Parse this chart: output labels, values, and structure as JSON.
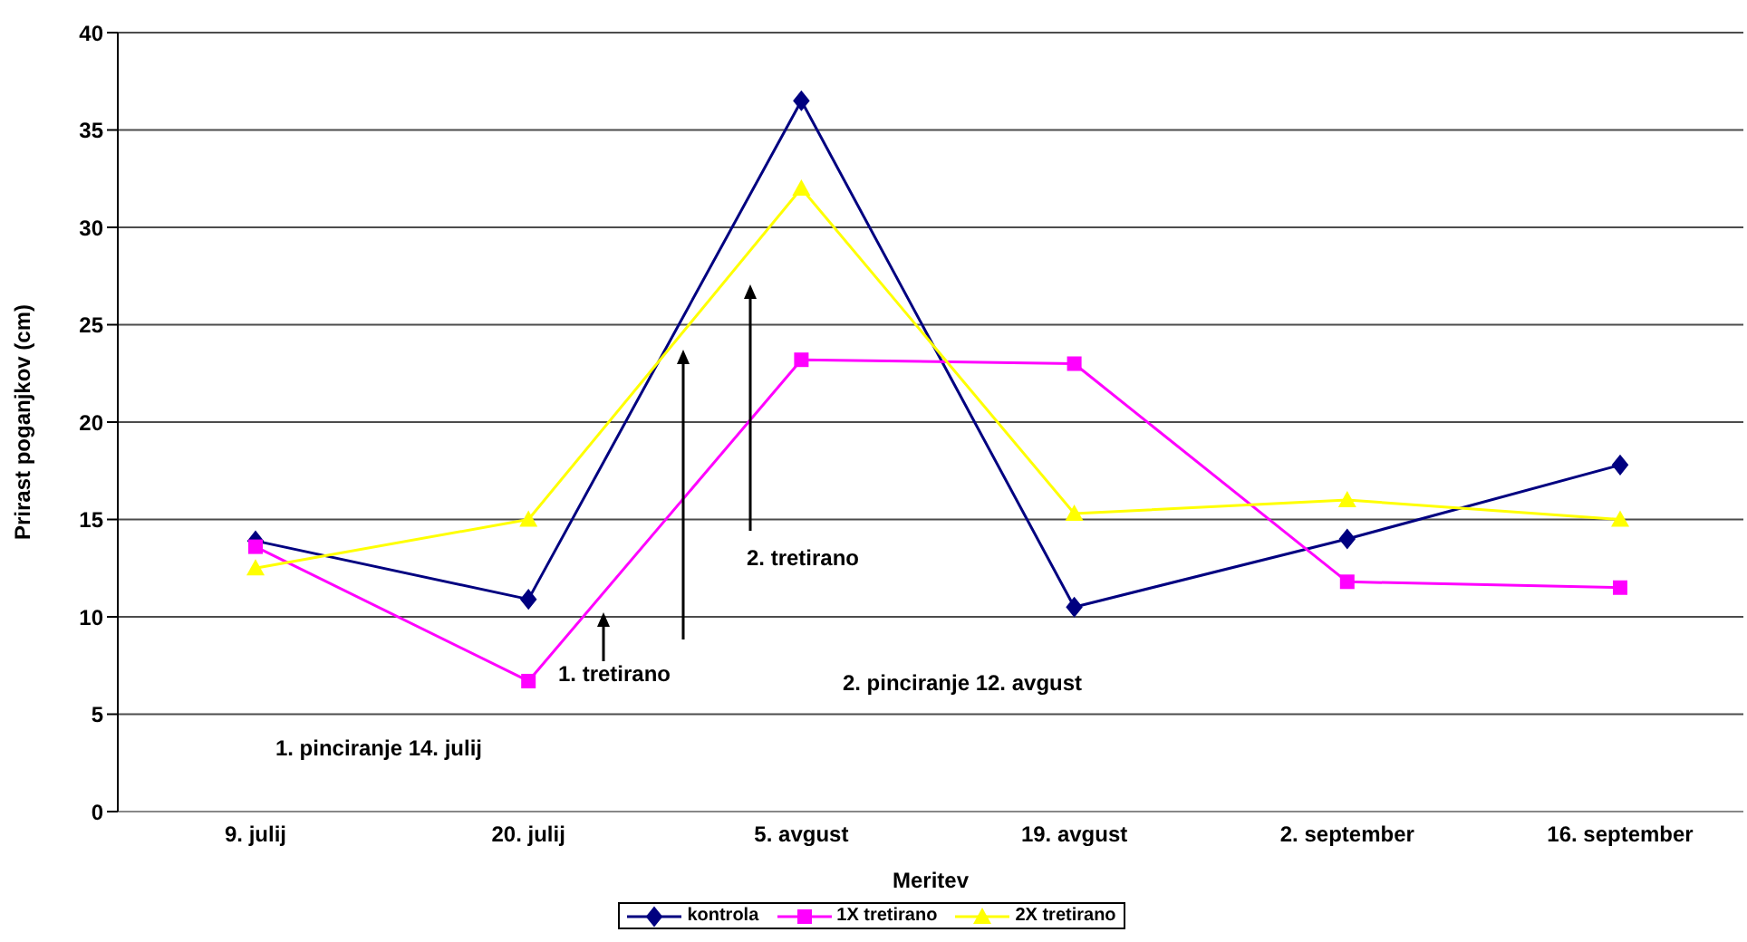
{
  "chart_data": {
    "type": "line",
    "xlabel": "Meritev",
    "ylabel": "Prirast poganjkov (cm)",
    "categories": [
      "9. julij",
      "20. julij",
      "5. avgust",
      "19. avgust",
      "2. september",
      "16. september"
    ],
    "series": [
      {
        "name": "kontrola",
        "color": "#000080",
        "marker": "diamond",
        "values": [
          13.9,
          10.9,
          36.5,
          10.5,
          14.0,
          17.8
        ]
      },
      {
        "name": "1X tretirano",
        "color": "#ff00ff",
        "marker": "square",
        "values": [
          13.6,
          6.7,
          23.2,
          23.0,
          11.8,
          11.5
        ]
      },
      {
        "name": "2X tretirano",
        "color": "#ffff00",
        "marker": "triangle",
        "values": [
          12.5,
          15.0,
          32.0,
          15.3,
          16.0,
          15.0
        ]
      }
    ],
    "ylim": [
      0,
      40
    ],
    "yticks": [
      0,
      5,
      10,
      15,
      20,
      25,
      30,
      35,
      40
    ],
    "grid": "y",
    "legend": "bottom",
    "annotations": [
      "1. pinciranje 14. julij",
      "1. tretirano",
      "2. tretirano",
      "2. pinciranje 12. avgust"
    ]
  }
}
